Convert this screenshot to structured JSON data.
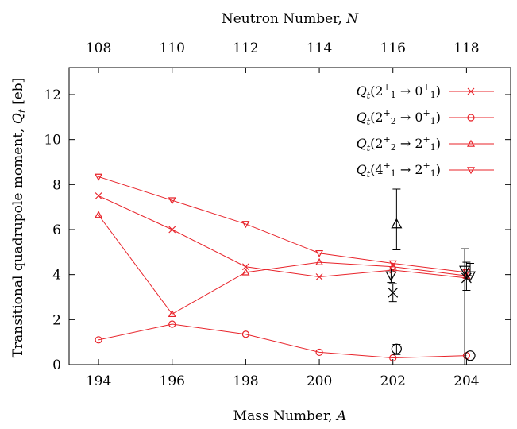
{
  "chart_data": {
    "type": "line",
    "top_axis_label": "Neutron Number, N",
    "top_ticks": [
      108,
      110,
      112,
      114,
      116,
      118
    ],
    "xlabel": "Mass Number, A",
    "ylabel": "Transitional quadrupole moment, Q_t [eb]",
    "xlim": [
      193.2,
      205.2
    ],
    "ylim": [
      0,
      13.2
    ],
    "x_ticks": [
      194,
      196,
      198,
      200,
      202,
      204
    ],
    "y_ticks": [
      0,
      2,
      4,
      6,
      8,
      10,
      12
    ],
    "grid": false,
    "legend_position": "top-right",
    "series_color": "#e8232a",
    "exp_color": "#000000",
    "series": [
      {
        "name": "Qt(2+1 → 0+1)",
        "marker": "cross",
        "x": [
          194,
          196,
          198,
          200,
          202,
          204
        ],
        "values": [
          7.5,
          6.0,
          4.35,
          3.9,
          4.2,
          3.85
        ]
      },
      {
        "name": "Qt(2+2 → 0+1)",
        "marker": "circle",
        "x": [
          194,
          196,
          198,
          200,
          202,
          204
        ],
        "values": [
          1.1,
          1.8,
          1.35,
          0.55,
          0.3,
          0.4
        ]
      },
      {
        "name": "Qt(2+2 → 2+1)",
        "marker": "triangle-up",
        "x": [
          194,
          196,
          198,
          200,
          202,
          204
        ],
        "values": [
          6.65,
          2.25,
          4.1,
          4.55,
          4.35,
          3.95
        ]
      },
      {
        "name": "Qt(4+1 → 2+1)",
        "marker": "triangle-down",
        "x": [
          194,
          196,
          198,
          200,
          202,
          204
        ],
        "values": [
          8.35,
          7.3,
          6.25,
          4.95,
          4.5,
          4.1
        ]
      }
    ],
    "experimental": [
      {
        "marker": "cross",
        "x": 202,
        "y": 3.2,
        "err_lo": 0.4,
        "err_hi": 0.4
      },
      {
        "marker": "circle",
        "x": 202.1,
        "y": 0.7,
        "err_lo": 0.25,
        "err_hi": 0.2
      },
      {
        "marker": "triangle-up",
        "x": 202.1,
        "y": 6.25,
        "err_lo": 1.15,
        "err_hi": 1.55
      },
      {
        "marker": "triangle-down",
        "x": 201.95,
        "y": 3.95,
        "err_lo": 0.3,
        "err_hi": 0.3
      },
      {
        "marker": "cross",
        "x": 204,
        "y": 3.85,
        "err_lo": 0.55,
        "err_hi": 0.7
      },
      {
        "marker": "circle",
        "x": 204.1,
        "y": 0.4,
        "err_lo": 0.0,
        "err_hi": 0.0
      },
      {
        "marker": "triangle-down",
        "x": 203.95,
        "y": 4.2,
        "err_lo": 4.2,
        "err_hi": 0.95
      },
      {
        "marker": "triangle-down",
        "x": 204.1,
        "y": 3.95,
        "err_lo": 0.0,
        "err_hi": 0.55
      }
    ]
  }
}
